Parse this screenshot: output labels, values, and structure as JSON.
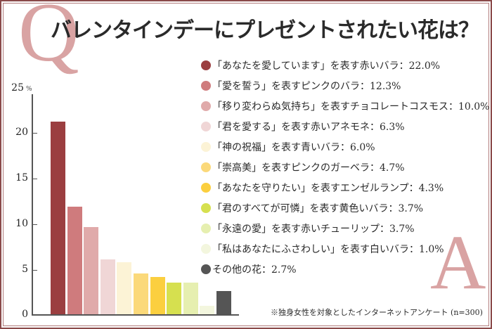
{
  "title": "バレンタインデーにプレゼントされたい花は？",
  "decor": {
    "q_letter": "Q",
    "a_letter": "A"
  },
  "footnote": "※独身女性を対象としたインターネットアンケート (n=300)",
  "axis": {
    "unit": "%",
    "ticks": [
      "0",
      "5",
      "10",
      "15",
      "20",
      "25"
    ]
  },
  "legend": [
    {
      "text": "「あなたを愛しています」を表す赤いバラ：22.0%",
      "color": "#9b3e40"
    },
    {
      "text": "「愛を誓う」を表すピンクのバラ：12.3%",
      "color": "#cf7b7d"
    },
    {
      "text": "「移り変わらぬ気持ち」を表すチョコレートコスモス：10.0%",
      "color": "#e0aaaa"
    },
    {
      "text": "「君を愛する」を表す赤いアネモネ：6.3%",
      "color": "#f0d6d6"
    },
    {
      "text": "「神の祝福」を表す青いバラ：6.0%",
      "color": "#fcf3d6"
    },
    {
      "text": "「崇高美」を表すピンクのガーベラ：4.7%",
      "color": "#fbd97a"
    },
    {
      "text": "「あなたを守りたい」を表すエンゼルランプ：4.3%",
      "color": "#fbcf3f"
    },
    {
      "text": "「君のすべてが可憐」を表す黄色いバラ：3.7%",
      "color": "#d6e04f"
    },
    {
      "text": "「永遠の愛」を表す赤いチューリップ：3.7%",
      "color": "#e6efb0"
    },
    {
      "text": "「私はあなたにふさわしい」を表す白いバラ：1.0%",
      "color": "#f3f6de"
    },
    {
      "text": "その他の花：2.7%",
      "color": "#555555"
    }
  ],
  "chart_data": {
    "type": "bar",
    "title": "バレンタインデーにプレゼントされたい花は？",
    "xlabel": "",
    "ylabel": "%",
    "ylim": [
      0,
      25
    ],
    "yticks": [
      0,
      5,
      10,
      15,
      20,
      25
    ],
    "grid": false,
    "legend_position": "right",
    "categories": [
      "「あなたを愛しています」を表す赤いバラ",
      "「愛を誓う」を表すピンクのバラ",
      "「移り変わらぬ気持ち」を表すチョコレートコスモス",
      "「君を愛する」を表す赤いアネモネ",
      "「神の祝福」を表す青いバラ",
      "「崇高美」を表すピンクのガーベラ",
      "「あなたを守りたい」を表すエンゼルランプ",
      "「君のすべてが可憐」を表す黄色いバラ",
      "「永遠の愛」を表す赤いチューリップ",
      "「私はあなたにふさわしい」を表す白いバラ",
      "その他の花"
    ],
    "values": [
      22.0,
      12.3,
      10.0,
      6.3,
      6.0,
      4.7,
      4.3,
      3.7,
      3.7,
      1.0,
      2.7
    ],
    "colors": [
      "#9b3e40",
      "#cf7b7d",
      "#e0aaaa",
      "#f0d6d6",
      "#fcf3d6",
      "#fbd97a",
      "#fbcf3f",
      "#d6e04f",
      "#e6efb0",
      "#f3f6de",
      "#555555"
    ],
    "annotations": [
      "※独身女性を対象としたインターネットアンケート (n=300)"
    ]
  }
}
